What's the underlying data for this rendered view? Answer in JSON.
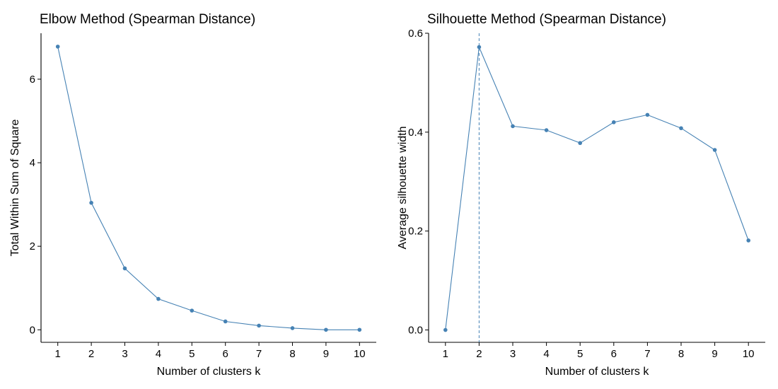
{
  "chart_data": [
    {
      "type": "line",
      "title": "Elbow Method (Spearman Distance)",
      "xlabel": "Number of clusters k",
      "ylabel": "Total Within Sum of Square",
      "x": [
        1,
        2,
        3,
        4,
        5,
        6,
        7,
        8,
        9,
        10
      ],
      "values": [
        6.78,
        3.04,
        1.47,
        0.74,
        0.46,
        0.2,
        0.1,
        0.04,
        0.0,
        0.0
      ],
      "xlim": [
        0.5,
        10.5
      ],
      "ylim": [
        -0.3,
        7.1
      ],
      "yticks": [
        0,
        2,
        4,
        6
      ],
      "ytick_labels": [
        "0",
        "2",
        "4",
        "6"
      ],
      "xtick_labels": [
        "1",
        "2",
        "3",
        "4",
        "5",
        "6",
        "7",
        "8",
        "9",
        "10"
      ],
      "color": "#4682B4",
      "grid": false
    },
    {
      "type": "line",
      "title": "Silhouette Method (Spearman Distance)",
      "xlabel": "Number of clusters k",
      "ylabel": "Average silhouette width",
      "x": [
        1,
        2,
        3,
        4,
        5,
        6,
        7,
        8,
        9,
        10
      ],
      "values": [
        0.0,
        0.572,
        0.412,
        0.404,
        0.378,
        0.42,
        0.435,
        0.408,
        0.364,
        0.181
      ],
      "xlim": [
        0.5,
        10.5
      ],
      "ylim": [
        -0.025,
        0.6
      ],
      "yticks": [
        0.0,
        0.2,
        0.4,
        0.6
      ],
      "ytick_labels": [
        "0.0",
        "0.2",
        "0.4",
        "0.6"
      ],
      "xtick_labels": [
        "1",
        "2",
        "3",
        "4",
        "5",
        "6",
        "7",
        "8",
        "9",
        "10"
      ],
      "vline_x": 2,
      "color": "#4682B4",
      "grid": false
    }
  ]
}
